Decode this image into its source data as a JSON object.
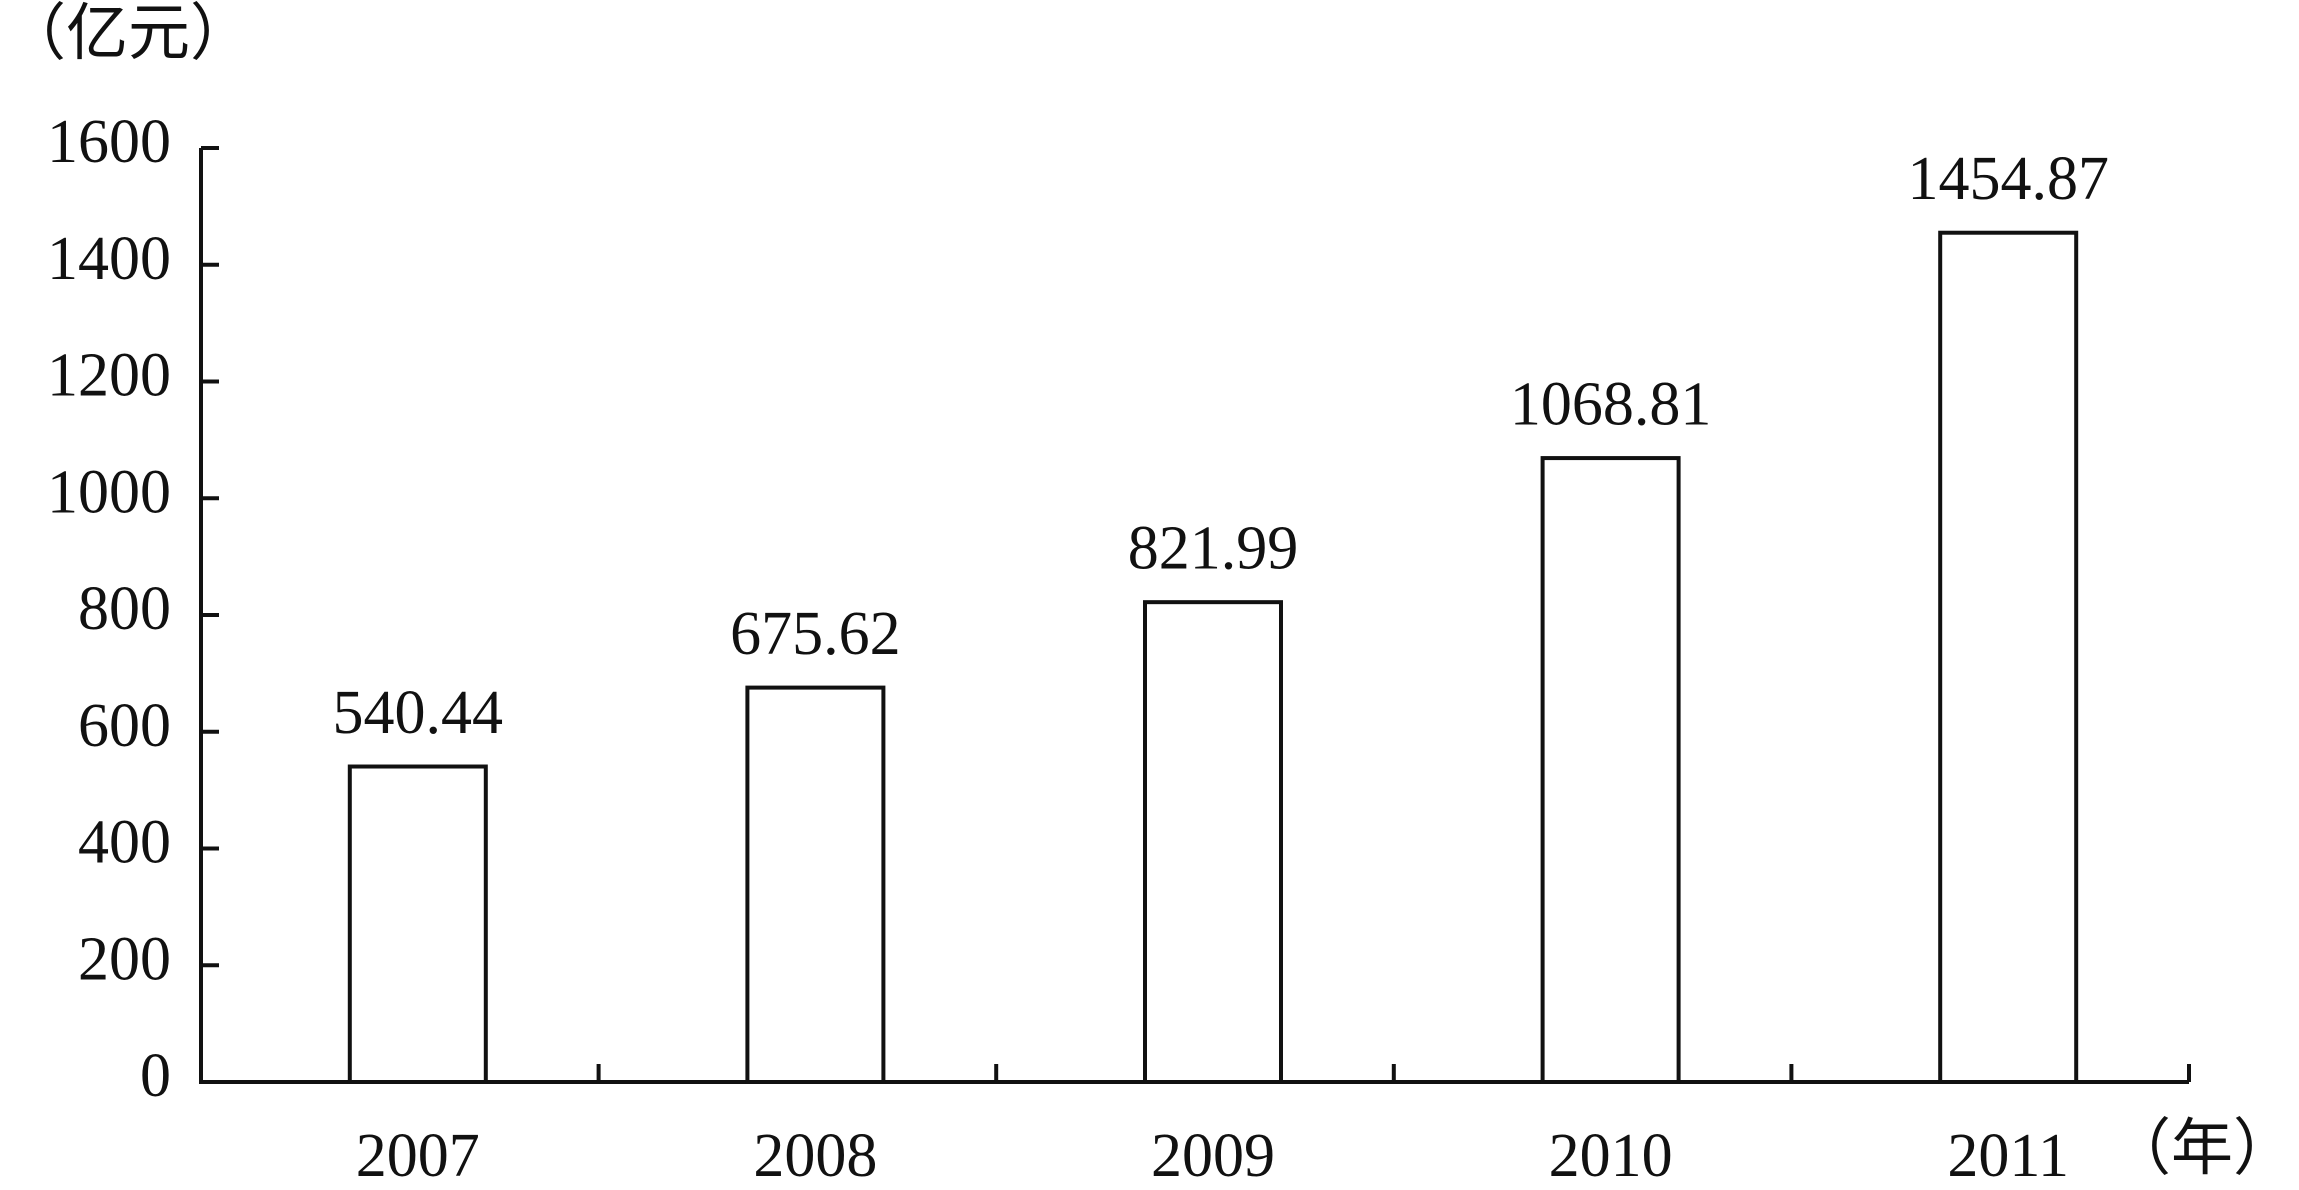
{
  "chart_data": {
    "type": "bar",
    "y_label": "（亿元）",
    "x_label": "（年）",
    "categories": [
      "2007",
      "2008",
      "2009",
      "2010",
      "2011"
    ],
    "values": [
      540.44,
      675.62,
      821.99,
      1068.81,
      1454.87
    ],
    "color": "#ffffff",
    "ylim": [
      0,
      1600
    ],
    "yticks": [
      0,
      200,
      400,
      600,
      800,
      1000,
      1200,
      1400,
      1600
    ],
    "grid": false
  }
}
